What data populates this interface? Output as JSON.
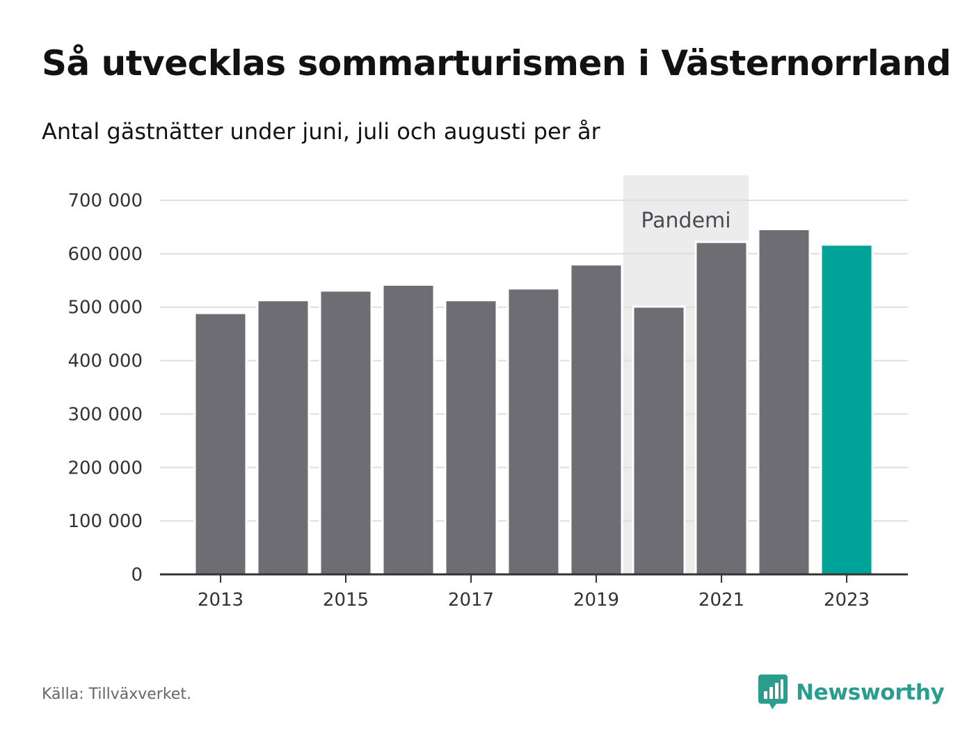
{
  "chart_data": {
    "type": "bar",
    "title": "Så utvecklas sommarturismen i Västernorrland",
    "subtitle": "Antal gästnätter under juni, juli och augusti per år",
    "categories": [
      "2013",
      "2014",
      "2015",
      "2016",
      "2017",
      "2018",
      "2019",
      "2020",
      "2021",
      "2022",
      "2023"
    ],
    "values": [
      489000,
      513000,
      531000,
      542000,
      513000,
      535000,
      580000,
      501000,
      622000,
      646000,
      617000
    ],
    "x_tick_labels": [
      "2013",
      "2015",
      "2017",
      "2019",
      "2021",
      "2023"
    ],
    "y_ticks": [
      0,
      100000,
      200000,
      300000,
      400000,
      500000,
      600000,
      700000
    ],
    "y_tick_labels": [
      "0",
      "100 000",
      "200 000",
      "300 000",
      "400 000",
      "500 000",
      "600 000",
      "700 000"
    ],
    "ylim": [
      0,
      700000
    ],
    "grid": true,
    "highlight_band": {
      "label": "Pandemi",
      "from": "2020",
      "to": "2021"
    },
    "colors": {
      "bar": "#6e6d73",
      "bar_highlight": "#00a398",
      "band": "#ececec",
      "grid": "#dedede",
      "axis": "#333333"
    },
    "highlight_category": "2023"
  },
  "footer": {
    "source": "Källa: Tillväxverket.",
    "brand_name": "Newsworthy",
    "brand_icon": "newsworthy-logo-icon"
  }
}
